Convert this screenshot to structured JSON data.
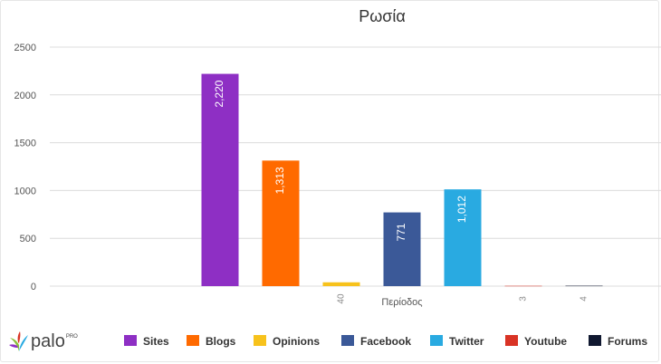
{
  "chart_data": {
    "type": "bar",
    "title": "Ρωσία",
    "xlabel": "Περίοδος",
    "ylabel": "",
    "ylim": [
      0,
      2500
    ],
    "yticks": [
      0,
      500,
      1000,
      1500,
      2000,
      2500
    ],
    "grid": true,
    "legend_position": "bottom",
    "series": [
      {
        "name": "Sites",
        "value": 2220,
        "label": "2,220",
        "color": "#8e2fc4"
      },
      {
        "name": "Blogs",
        "value": 1313,
        "label": "1,313",
        "color": "#ff6a00"
      },
      {
        "name": "Opinions",
        "value": 40,
        "label": "40",
        "color": "#f7c21c"
      },
      {
        "name": "Facebook",
        "value": 771,
        "label": "771",
        "color": "#3b5998"
      },
      {
        "name": "Twitter",
        "value": 1012,
        "label": "1,012",
        "color": "#29aae1"
      },
      {
        "name": "Youtube",
        "value": 3,
        "label": "3",
        "color": "#d93325"
      },
      {
        "name": "Forums",
        "value": 4,
        "label": "4",
        "color": "#101830"
      }
    ]
  },
  "logo": {
    "text": "palo",
    "superscript": "PRO"
  }
}
